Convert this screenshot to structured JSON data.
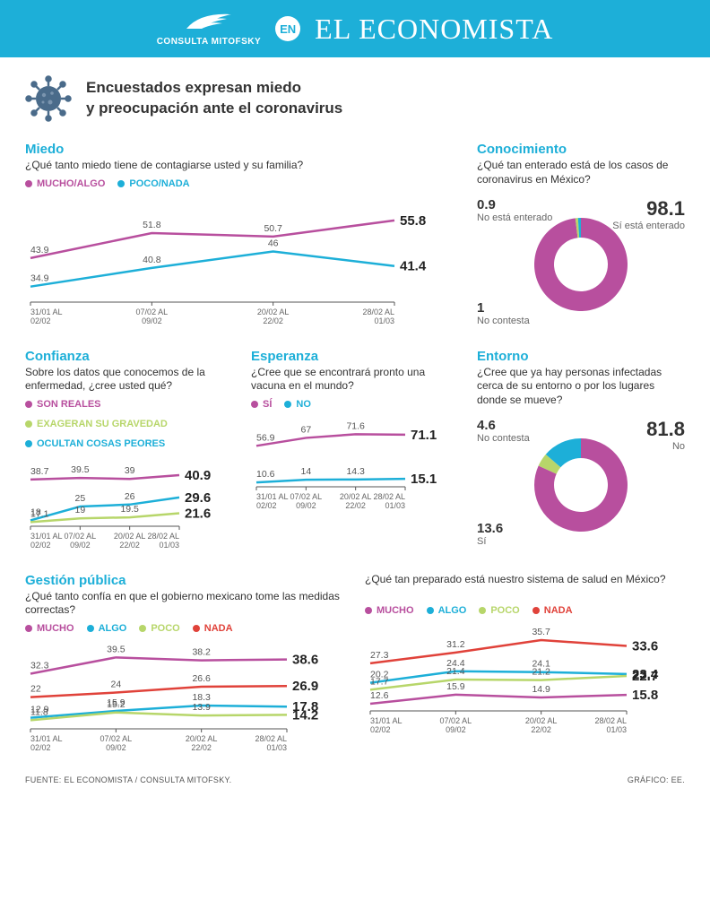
{
  "header": {
    "mitofsky": "CONSULTA MITOFSKY",
    "en": "EN",
    "masthead": "EL ECONOMISTA",
    "bar_color": "#1dafd8",
    "text_color": "#ffffff"
  },
  "title": "Encuestados expresan miedo\ny preocupación ante el coronavirus",
  "colors": {
    "magenta": "#b84f9e",
    "cyan": "#1dafd8",
    "green": "#b7d66a",
    "red": "#e0423a",
    "axis": "#555555",
    "grid": "#ffffff",
    "text": "#333333"
  },
  "x_labels": [
    "31/01 AL\n02/02",
    "07/02 AL\n09/02",
    "20/02 AL\n22/02",
    "28/02 AL\n01/03"
  ],
  "miedo": {
    "title": "Miedo",
    "question": "¿Qué tanto miedo tiene de contagiarse usted y su familia?",
    "legend": [
      {
        "label": "MUCHO/ALGO",
        "color": "#b84f9e"
      },
      {
        "label": "POCO/NADA",
        "color": "#1dafd8"
      }
    ],
    "series": [
      {
        "color": "#b84f9e",
        "values": [
          43.9,
          51.8,
          50.7,
          55.8
        ],
        "end": "55.8"
      },
      {
        "color": "#1dafd8",
        "values": [
          34.9,
          40.8,
          46.0,
          41.4
        ],
        "end": "41.4"
      }
    ],
    "ylim": [
      30,
      60
    ]
  },
  "conocimiento": {
    "title": "Conocimiento",
    "question": "¿Qué tan enterado está de los casos de coronavirus en México?",
    "segments": [
      {
        "label": "Sí está enterado",
        "value": 98.1,
        "color": "#b84f9e",
        "side": "right",
        "big": true
      },
      {
        "label": "No está enterado",
        "value": 0.9,
        "color": "#b7d66a",
        "side": "left-top"
      },
      {
        "label": "No contesta",
        "value": 1.0,
        "color": "#1dafd8",
        "side": "left-bottom"
      }
    ]
  },
  "confianza": {
    "title": "Confianza",
    "question": "Sobre los datos que conocemos de la enfermedad, ¿cree usted qué?",
    "legend": [
      {
        "label": "SON REALES",
        "color": "#b84f9e"
      },
      {
        "label": "EXAGERAN SU GRAVEDAD",
        "color": "#b7d66a"
      },
      {
        "label": "OCULTAN COSAS PEORES",
        "color": "#1dafd8"
      }
    ],
    "series": [
      {
        "color": "#b84f9e",
        "values": [
          38.7,
          39.5,
          39.0,
          40.9
        ],
        "end": "40.9",
        "start": "38.7"
      },
      {
        "color": "#1dafd8",
        "values": [
          18.0,
          25.0,
          26.0,
          29.6
        ],
        "end": "29.6",
        "start": "18.0"
      },
      {
        "color": "#b7d66a",
        "values": [
          17.1,
          19.0,
          19.5,
          21.6
        ],
        "end": "21.6",
        "start": "17.1"
      }
    ],
    "ylim": [
      15,
      45
    ]
  },
  "esperanza": {
    "title": "Esperanza",
    "question": "¿Cree que se encontrará pronto una vacuna en el mundo?",
    "legend": [
      {
        "label": "SÍ",
        "color": "#b84f9e"
      },
      {
        "label": "NO",
        "color": "#1dafd8"
      }
    ],
    "series": [
      {
        "color": "#b84f9e",
        "values": [
          56.9,
          67.0,
          71.6,
          71.1
        ],
        "end": "71.1"
      },
      {
        "color": "#1dafd8",
        "values": [
          10.6,
          14,
          14.3,
          15.1
        ],
        "end": "15.1"
      }
    ],
    "ylim": [
      5,
      80
    ]
  },
  "entorno": {
    "title": "Entorno",
    "question": "¿Cree que ya hay personas infectadas cerca de su entorno o por los lugares donde se mueve?",
    "segments": [
      {
        "label": "No",
        "value": 81.8,
        "color": "#b84f9e",
        "side": "right",
        "big": true
      },
      {
        "label": "No contesta",
        "value": 4.6,
        "color": "#b7d66a",
        "side": "left-top"
      },
      {
        "label": "Sí",
        "value": 13.6,
        "color": "#1dafd8",
        "side": "left-bottom"
      }
    ]
  },
  "gestion1": {
    "title": "Gestión pública",
    "question": "¿Qué tanto confía en que el gobierno mexicano tome las medidas correctas?",
    "legend": [
      {
        "label": "MUCHO",
        "color": "#b84f9e"
      },
      {
        "label": "ALGO",
        "color": "#1dafd8"
      },
      {
        "label": "POCO",
        "color": "#b7d66a"
      },
      {
        "label": "NADA",
        "color": "#e0423a"
      }
    ],
    "series": [
      {
        "color": "#b84f9e",
        "values": [
          32.3,
          39.5,
          38.2,
          38.6
        ],
        "end": "38.6"
      },
      {
        "color": "#e0423a",
        "values": [
          22.0,
          24.0,
          26.6,
          26.9
        ],
        "end": "26.9"
      },
      {
        "color": "#1dafd8",
        "values": [
          12.9,
          15.9,
          18.3,
          17.8
        ],
        "end": "17.8"
      },
      {
        "color": "#b7d66a",
        "values": [
          11.8,
          15.2,
          13.9,
          14.2
        ],
        "end": "14.2"
      }
    ],
    "ylim": [
      8,
      42
    ]
  },
  "gestion2": {
    "question": "¿Qué tan preparado está nuestro sistema de salud en México?",
    "legend": [
      {
        "label": "MUCHO",
        "color": "#b84f9e"
      },
      {
        "label": "ALGO",
        "color": "#1dafd8"
      },
      {
        "label": "POCO",
        "color": "#b7d66a"
      },
      {
        "label": "NADA",
        "color": "#e0423a"
      }
    ],
    "series": [
      {
        "color": "#e0423a",
        "values": [
          27.3,
          31.2,
          35.7,
          33.6
        ],
        "end": "33.6"
      },
      {
        "color": "#1dafd8",
        "values": [
          20.2,
          24.4,
          24.1,
          23.4
        ],
        "end": "23.4"
      },
      {
        "color": "#b7d66a",
        "values": [
          17.7,
          21.4,
          21.2,
          22.7
        ],
        "end": "22.7"
      },
      {
        "color": "#b84f9e",
        "values": [
          12.6,
          15.9,
          14.9,
          15.8
        ],
        "end": "15.8"
      }
    ],
    "ylim": [
      10,
      38
    ]
  },
  "footer": {
    "left": "FUENTE: EL ECONOMISTA / CONSULTA MITOFSKY.",
    "right": "GRÁFICO: EE."
  }
}
